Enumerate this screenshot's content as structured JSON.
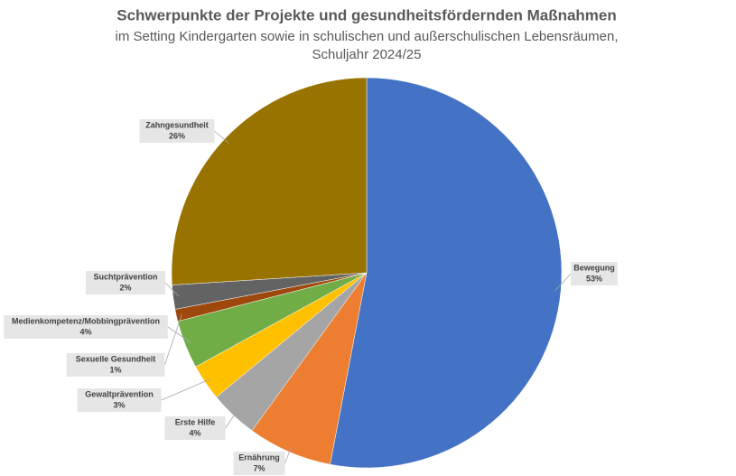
{
  "chart_data": {
    "type": "pie",
    "title": "Schwerpunkte der Projekte und gesundheitsfördernden Maßnahmen",
    "subtitle": [
      "im Setting Kindergarten sowie in schulischen und außerschulischen Lebensräumen,",
      "Schuljahr 2024/25"
    ],
    "categories": [
      "Bewegung",
      "Ernährung",
      "Erste Hilfe",
      "Gewaltprävention",
      "Medienkompetenz/Mobbingprävention",
      "Sexuelle Gesundheit",
      "Suchtprävention",
      "Zahngesundheit"
    ],
    "values": [
      53,
      7,
      4,
      3,
      4,
      1,
      2,
      26
    ],
    "value_labels": [
      "53%",
      "7%",
      "4%",
      "3%",
      "4%",
      "1%",
      "2%",
      "26%"
    ],
    "colors": [
      "#4472c4",
      "#ed7d31",
      "#a5a5a5",
      "#ffc000",
      "#70ad47",
      "#9e480e",
      "#636363",
      "#997300"
    ]
  }
}
